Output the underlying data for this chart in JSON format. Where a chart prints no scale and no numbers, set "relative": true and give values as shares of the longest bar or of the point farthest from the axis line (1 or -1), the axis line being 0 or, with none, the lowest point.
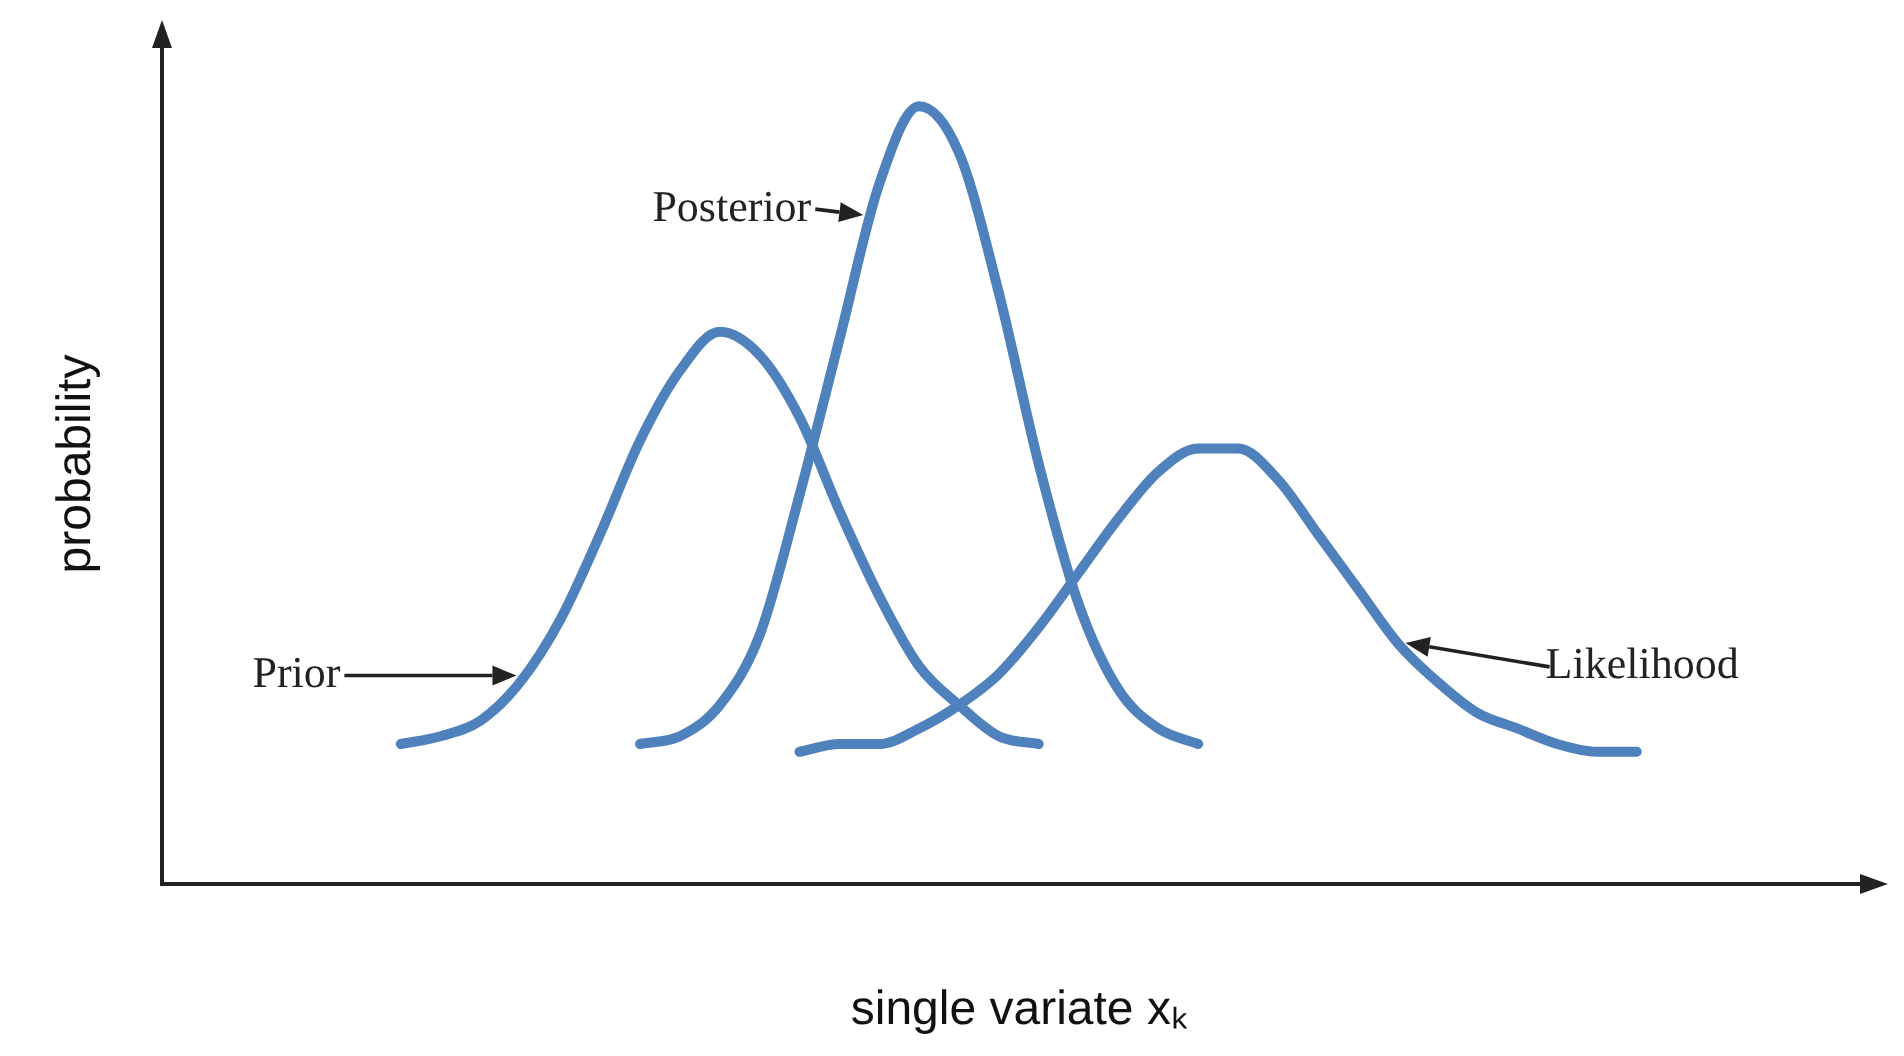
{
  "chart_data": {
    "type": "line",
    "relative": true,
    "xlabel": "single variate xₖ",
    "ylabel": "probability",
    "marker": "none",
    "line_style": "solid",
    "categories": [
      null,
      null,
      null,
      null,
      null,
      null,
      null,
      null,
      null,
      null,
      null,
      null,
      null,
      null,
      null,
      null,
      null,
      null,
      null,
      null,
      null,
      null,
      null,
      null,
      null,
      null,
      null,
      null,
      null,
      null,
      null,
      null,
      null,
      null,
      null,
      null,
      null,
      null,
      null,
      null,
      null,
      null,
      null,
      null
    ],
    "series": [
      {
        "name": "Prior",
        "color": "#4f81bd",
        "values": [
          null,
          null,
          null,
          null,
          null,
          null,
          0.18,
          0.19,
          0.21,
          0.26,
          0.34,
          0.45,
          0.57,
          0.66,
          0.71,
          0.68,
          0.6,
          0.48,
          0.37,
          0.28,
          0.23,
          0.19,
          0.18,
          null,
          null,
          null,
          null,
          null,
          null,
          null,
          null,
          null,
          null,
          null,
          null,
          null,
          null,
          null,
          null,
          null,
          null,
          null,
          null,
          null
        ]
      },
      {
        "name": "Posterior",
        "color": "#4f81bd",
        "values": [
          null,
          null,
          null,
          null,
          null,
          null,
          null,
          null,
          null,
          null,
          null,
          null,
          0.18,
          0.19,
          0.23,
          0.32,
          0.5,
          0.7,
          0.9,
          1,
          0.94,
          0.76,
          0.54,
          0.36,
          0.25,
          0.2,
          0.18,
          null,
          null,
          null,
          null,
          null,
          null,
          null,
          null,
          null,
          null,
          null,
          null,
          null,
          null,
          null,
          null,
          null
        ]
      },
      {
        "name": "Likelihood",
        "color": "#4f81bd",
        "values": [
          null,
          null,
          null,
          null,
          null,
          null,
          null,
          null,
          null,
          null,
          null,
          null,
          null,
          null,
          null,
          null,
          0.17,
          0.18,
          0.18,
          0.2,
          0.23,
          0.27,
          0.33,
          0.4,
          0.47,
          0.53,
          0.56,
          0.56,
          0.52,
          0.45,
          0.38,
          0.31,
          0.26,
          0.22,
          0.2,
          0.18,
          0.17,
          0.17,
          null,
          null,
          null,
          null,
          null,
          null
        ]
      }
    ]
  }
}
